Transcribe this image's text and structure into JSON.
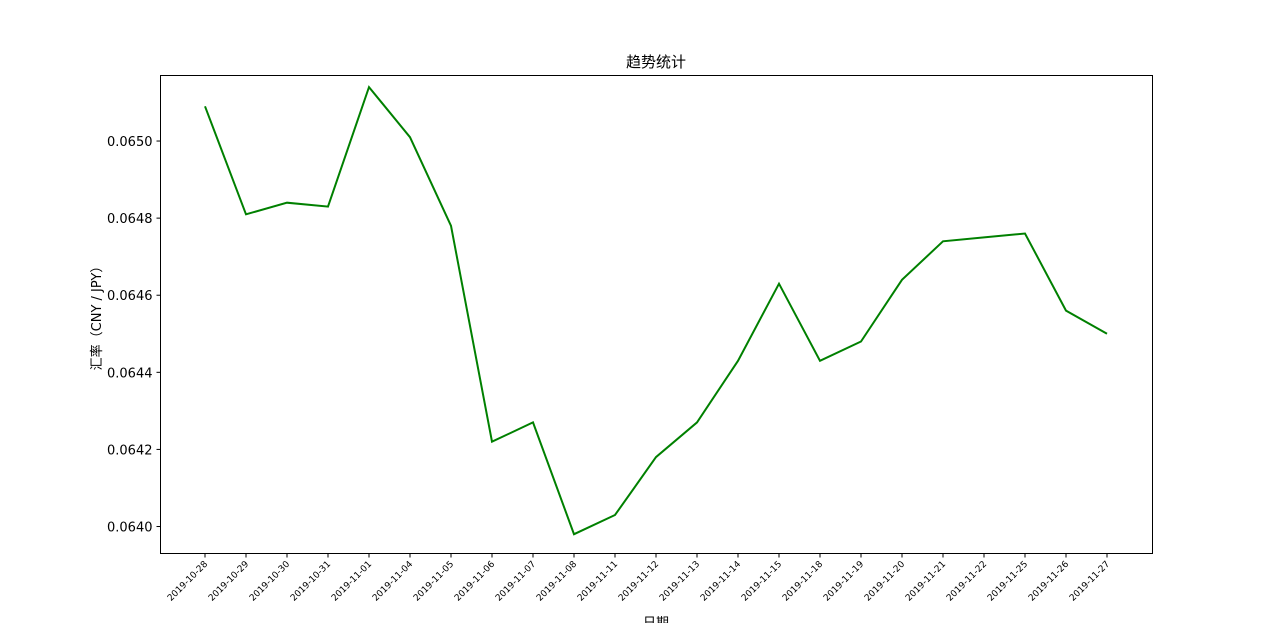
{
  "chart_data": {
    "type": "line",
    "title": "趋势统计",
    "xlabel": "日期",
    "ylabel": "汇率（CNY / JPY）",
    "ylim": [
      0.06393,
      0.06517
    ],
    "yticks": [
      "0.0640",
      "0.0642",
      "0.0644",
      "0.0646",
      "0.0648",
      "0.0650"
    ],
    "grid": false,
    "color": "#008000",
    "categories": [
      "2019-10-28",
      "2019-10-29",
      "2019-10-30",
      "2019-10-31",
      "2019-11-01",
      "2019-11-04",
      "2019-11-05",
      "2019-11-06",
      "2019-11-07",
      "2019-11-08",
      "2019-11-11",
      "2019-11-12",
      "2019-11-13",
      "2019-11-14",
      "2019-11-15",
      "2019-11-18",
      "2019-11-19",
      "2019-11-20",
      "2019-11-21",
      "2019-11-22",
      "2019-11-25",
      "2019-11-26",
      "2019-11-27"
    ],
    "values": [
      0.06509,
      0.06481,
      0.06484,
      0.06483,
      0.06514,
      0.06501,
      0.06478,
      0.06422,
      0.06427,
      0.06398,
      0.06403,
      0.06418,
      0.06427,
      0.06443,
      0.06463,
      0.06443,
      0.06448,
      0.06464,
      0.06474,
      0.06475,
      0.06476,
      0.06456,
      0.0645
    ]
  }
}
